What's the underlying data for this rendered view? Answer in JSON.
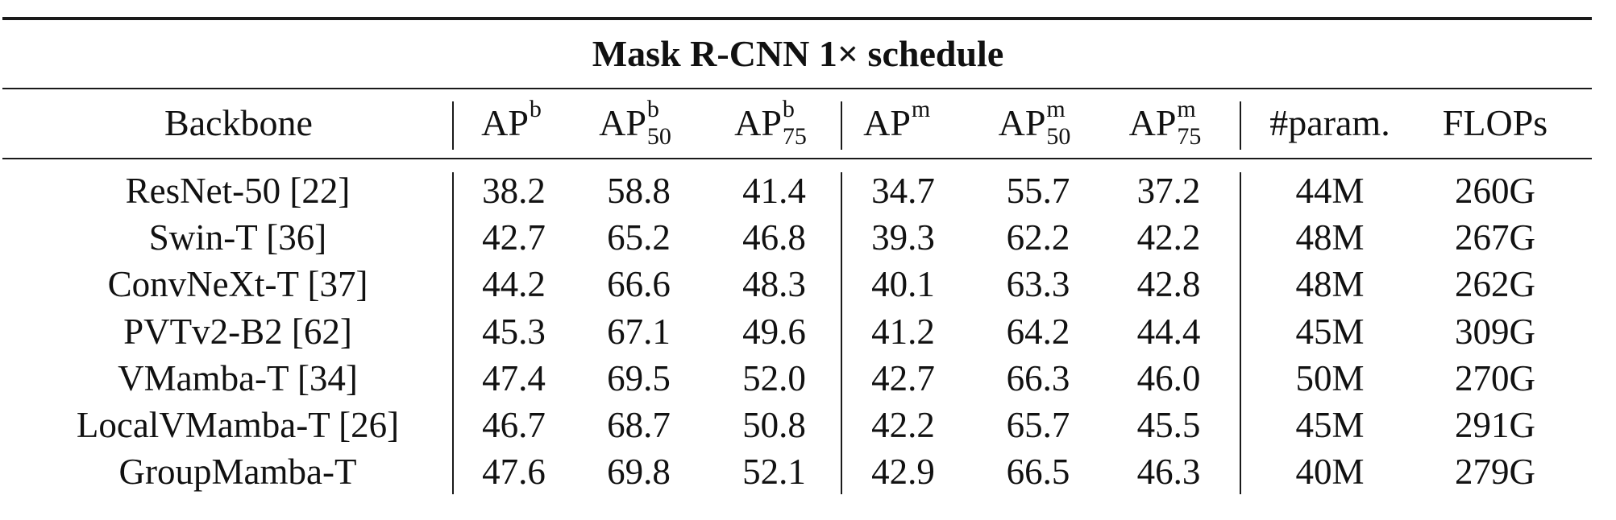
{
  "table": {
    "title": "Mask R-CNN 1× schedule",
    "headers": {
      "backbone": "Backbone",
      "ap_b": {
        "base": "AP",
        "sup": "b",
        "sub": ""
      },
      "ap_b50": {
        "base": "AP",
        "sup": "b",
        "sub": "50"
      },
      "ap_b75": {
        "base": "AP",
        "sup": "b",
        "sub": "75"
      },
      "ap_m": {
        "base": "AP",
        "sup": "m",
        "sub": ""
      },
      "ap_m50": {
        "base": "AP",
        "sup": "m",
        "sub": "50"
      },
      "ap_m75": {
        "base": "AP",
        "sup": "m",
        "sub": "75"
      },
      "params": "#param.",
      "flops": "FLOPs"
    },
    "rows": [
      {
        "backbone": "ResNet-50 [22]",
        "ap_b": "38.2",
        "ap_b50": "58.8",
        "ap_b75": "41.4",
        "ap_m": "34.7",
        "ap_m50": "55.7",
        "ap_m75": "37.2",
        "params": "44M",
        "flops": "260G"
      },
      {
        "backbone": "Swin-T [36]",
        "ap_b": "42.7",
        "ap_b50": "65.2",
        "ap_b75": "46.8",
        "ap_m": "39.3",
        "ap_m50": "62.2",
        "ap_m75": "42.2",
        "params": "48M",
        "flops": "267G"
      },
      {
        "backbone": "ConvNeXt-T [37]",
        "ap_b": "44.2",
        "ap_b50": "66.6",
        "ap_b75": "48.3",
        "ap_m": "40.1",
        "ap_m50": "63.3",
        "ap_m75": "42.8",
        "params": "48M",
        "flops": "262G"
      },
      {
        "backbone": "PVTv2-B2 [62]",
        "ap_b": "45.3",
        "ap_b50": "67.1",
        "ap_b75": "49.6",
        "ap_m": "41.2",
        "ap_m50": "64.2",
        "ap_m75": "44.4",
        "params": "45M",
        "flops": "309G"
      },
      {
        "backbone": "VMamba-T [34]",
        "ap_b": "47.4",
        "ap_b50": "69.5",
        "ap_b75": "52.0",
        "ap_m": "42.7",
        "ap_m50": "66.3",
        "ap_m75": "46.0",
        "params": "50M",
        "flops": "270G"
      },
      {
        "backbone": "LocalVMamba-T [26]",
        "ap_b": "46.7",
        "ap_b50": "68.7",
        "ap_b75": "50.8",
        "ap_m": "42.2",
        "ap_m50": "65.7",
        "ap_m75": "45.5",
        "params": "45M",
        "flops": "291G"
      },
      {
        "backbone": "GroupMamba-T",
        "ap_b": "47.6",
        "ap_b50": "69.8",
        "ap_b75": "52.1",
        "ap_m": "42.9",
        "ap_m50": "66.5",
        "ap_m75": "46.3",
        "params": "40M",
        "flops": "279G"
      }
    ]
  }
}
